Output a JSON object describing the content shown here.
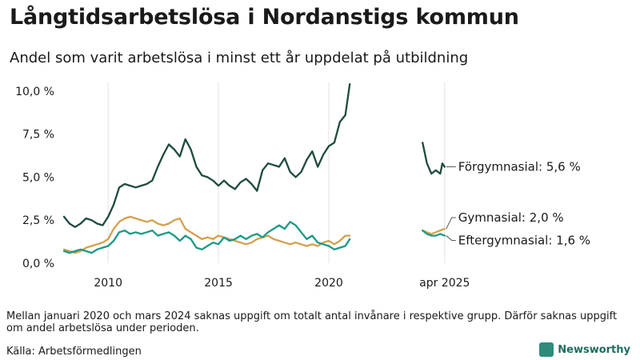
{
  "title": "Långtidsarbetslösa i Nordanstigs kommun",
  "subtitle": "Andel som varit arbetslösa i minst ett år uppdelat på utbildning",
  "note": "Mellan januari 2020 och mars 2024 saknas uppgift om totalt antal invånare i respektive grupp. Därför saknas uppgift om andel arbetslösa under perioden.",
  "source": "Källa: Arbetsförmedlingen",
  "brand": "Newsworthy",
  "chart_data": {
    "type": "line",
    "title": "Långtidsarbetslösa i Nordanstigs kommun",
    "subtitle": "Andel som varit arbetslösa i minst ett år uppdelat på utbildning",
    "xlabel": "",
    "ylabel": "",
    "y_ticks": [
      "0,0 %",
      "2,5 %",
      "5,0 %",
      "7,5 %",
      "10,0 %"
    ],
    "y_tick_values": [
      0,
      2.5,
      5,
      7.5,
      10
    ],
    "x_ticks": [
      "2010",
      "2015",
      "2020",
      "apr 2025"
    ],
    "x_tick_values": [
      2010.0,
      2015.0,
      2020.0,
      2025.25
    ],
    "xlim": [
      2008.0,
      2026.2
    ],
    "ylim": [
      0,
      10.5
    ],
    "grid": "vertical",
    "legend": "labels at line ends (right)",
    "colors": {
      "forgymnasial": "#1e4a40",
      "gymnasial": "#d4a04c",
      "eftergymnasial": "#1b9a86"
    },
    "series": [
      {
        "name": "Förgymnasial",
        "key": "forgymnasial",
        "end_label": "Förgymnasial: 5,6 %",
        "segments": [
          [
            [
              2008.0,
              2.7
            ],
            [
              2008.25,
              2.3
            ],
            [
              2008.5,
              2.1
            ],
            [
              2008.75,
              2.3
            ],
            [
              2009.0,
              2.6
            ],
            [
              2009.25,
              2.5
            ],
            [
              2009.5,
              2.3
            ],
            [
              2009.75,
              2.2
            ],
            [
              2010.0,
              2.7
            ],
            [
              2010.25,
              3.4
            ],
            [
              2010.5,
              4.4
            ],
            [
              2010.75,
              4.6
            ],
            [
              2011.0,
              4.5
            ],
            [
              2011.25,
              4.4
            ],
            [
              2011.5,
              4.5
            ],
            [
              2011.75,
              4.6
            ],
            [
              2012.0,
              4.8
            ],
            [
              2012.25,
              5.6
            ],
            [
              2012.5,
              6.3
            ],
            [
              2012.75,
              6.9
            ],
            [
              2013.0,
              6.6
            ],
            [
              2013.25,
              6.2
            ],
            [
              2013.5,
              7.2
            ],
            [
              2013.75,
              6.6
            ],
            [
              2014.0,
              5.6
            ],
            [
              2014.25,
              5.1
            ],
            [
              2014.5,
              5.0
            ],
            [
              2014.75,
              4.8
            ],
            [
              2015.0,
              4.5
            ],
            [
              2015.25,
              4.8
            ],
            [
              2015.5,
              4.5
            ],
            [
              2015.75,
              4.3
            ],
            [
              2016.0,
              4.7
            ],
            [
              2016.25,
              4.9
            ],
            [
              2016.5,
              4.6
            ],
            [
              2016.75,
              4.2
            ],
            [
              2017.0,
              5.4
            ],
            [
              2017.25,
              5.8
            ],
            [
              2017.5,
              5.7
            ],
            [
              2017.75,
              5.6
            ],
            [
              2018.0,
              6.1
            ],
            [
              2018.25,
              5.3
            ],
            [
              2018.5,
              5.0
            ],
            [
              2018.75,
              5.3
            ],
            [
              2019.0,
              6.0
            ],
            [
              2019.25,
              6.5
            ],
            [
              2019.5,
              5.6
            ],
            [
              2019.75,
              6.3
            ],
            [
              2020.0,
              6.8
            ],
            [
              2020.25,
              7.0
            ],
            [
              2020.5,
              8.2
            ],
            [
              2020.75,
              8.6
            ],
            [
              2020.95,
              10.4
            ]
          ],
          [
            [
              2024.25,
              7.0
            ],
            [
              2024.45,
              5.8
            ],
            [
              2024.65,
              5.2
            ],
            [
              2024.85,
              5.4
            ],
            [
              2025.05,
              5.2
            ],
            [
              2025.15,
              5.8
            ],
            [
              2025.25,
              5.6
            ]
          ]
        ]
      },
      {
        "name": "Gymnasial",
        "key": "gymnasial",
        "end_label": "Gymnasial: 2,0 %",
        "segments": [
          [
            [
              2008.0,
              0.8
            ],
            [
              2008.25,
              0.7
            ],
            [
              2008.5,
              0.6
            ],
            [
              2008.75,
              0.7
            ],
            [
              2009.0,
              0.9
            ],
            [
              2009.25,
              1.0
            ],
            [
              2009.5,
              1.1
            ],
            [
              2009.75,
              1.2
            ],
            [
              2010.0,
              1.4
            ],
            [
              2010.25,
              2.0
            ],
            [
              2010.5,
              2.4
            ],
            [
              2010.75,
              2.6
            ],
            [
              2011.0,
              2.7
            ],
            [
              2011.25,
              2.6
            ],
            [
              2011.5,
              2.5
            ],
            [
              2011.75,
              2.4
            ],
            [
              2012.0,
              2.5
            ],
            [
              2012.25,
              2.3
            ],
            [
              2012.5,
              2.2
            ],
            [
              2012.75,
              2.3
            ],
            [
              2013.0,
              2.5
            ],
            [
              2013.25,
              2.6
            ],
            [
              2013.5,
              2.0
            ],
            [
              2013.75,
              1.8
            ],
            [
              2014.0,
              1.6
            ],
            [
              2014.25,
              1.4
            ],
            [
              2014.5,
              1.5
            ],
            [
              2014.75,
              1.4
            ],
            [
              2015.0,
              1.6
            ],
            [
              2015.25,
              1.5
            ],
            [
              2015.5,
              1.4
            ],
            [
              2015.75,
              1.3
            ],
            [
              2016.0,
              1.2
            ],
            [
              2016.25,
              1.1
            ],
            [
              2016.5,
              1.2
            ],
            [
              2016.75,
              1.4
            ],
            [
              2017.0,
              1.5
            ],
            [
              2017.25,
              1.6
            ],
            [
              2017.5,
              1.4
            ],
            [
              2017.75,
              1.3
            ],
            [
              2018.0,
              1.2
            ],
            [
              2018.25,
              1.1
            ],
            [
              2018.5,
              1.2
            ],
            [
              2018.75,
              1.1
            ],
            [
              2019.0,
              1.0
            ],
            [
              2019.25,
              1.1
            ],
            [
              2019.5,
              1.0
            ],
            [
              2019.75,
              1.2
            ],
            [
              2020.0,
              1.3
            ],
            [
              2020.25,
              1.1
            ],
            [
              2020.5,
              1.3
            ],
            [
              2020.75,
              1.6
            ],
            [
              2020.95,
              1.6
            ]
          ],
          [
            [
              2024.25,
              1.9
            ],
            [
              2024.45,
              1.8
            ],
            [
              2024.65,
              1.7
            ],
            [
              2024.85,
              1.8
            ],
            [
              2025.05,
              1.9
            ],
            [
              2025.25,
              2.0
            ]
          ]
        ]
      },
      {
        "name": "Eftergymnasial",
        "key": "eftergymnasial",
        "end_label": "Eftergymnasial: 1,6 %",
        "segments": [
          [
            [
              2008.0,
              0.7
            ],
            [
              2008.25,
              0.6
            ],
            [
              2008.5,
              0.7
            ],
            [
              2008.75,
              0.8
            ],
            [
              2009.0,
              0.7
            ],
            [
              2009.25,
              0.6
            ],
            [
              2009.5,
              0.8
            ],
            [
              2009.75,
              0.9
            ],
            [
              2010.0,
              1.0
            ],
            [
              2010.25,
              1.3
            ],
            [
              2010.5,
              1.8
            ],
            [
              2010.75,
              1.9
            ],
            [
              2011.0,
              1.7
            ],
            [
              2011.25,
              1.8
            ],
            [
              2011.5,
              1.7
            ],
            [
              2011.75,
              1.8
            ],
            [
              2012.0,
              1.9
            ],
            [
              2012.25,
              1.6
            ],
            [
              2012.5,
              1.7
            ],
            [
              2012.75,
              1.8
            ],
            [
              2013.0,
              1.6
            ],
            [
              2013.25,
              1.3
            ],
            [
              2013.5,
              1.6
            ],
            [
              2013.75,
              1.4
            ],
            [
              2014.0,
              0.9
            ],
            [
              2014.25,
              0.8
            ],
            [
              2014.5,
              1.0
            ],
            [
              2014.75,
              1.2
            ],
            [
              2015.0,
              1.1
            ],
            [
              2015.25,
              1.5
            ],
            [
              2015.5,
              1.3
            ],
            [
              2015.75,
              1.4
            ],
            [
              2016.0,
              1.6
            ],
            [
              2016.25,
              1.4
            ],
            [
              2016.5,
              1.6
            ],
            [
              2016.75,
              1.7
            ],
            [
              2017.0,
              1.5
            ],
            [
              2017.25,
              1.8
            ],
            [
              2017.5,
              2.0
            ],
            [
              2017.75,
              2.2
            ],
            [
              2018.0,
              2.0
            ],
            [
              2018.25,
              2.4
            ],
            [
              2018.5,
              2.2
            ],
            [
              2018.75,
              1.8
            ],
            [
              2019.0,
              1.4
            ],
            [
              2019.25,
              1.6
            ],
            [
              2019.5,
              1.2
            ],
            [
              2019.75,
              1.1
            ],
            [
              2020.0,
              1.0
            ],
            [
              2020.25,
              0.8
            ],
            [
              2020.5,
              0.9
            ],
            [
              2020.75,
              1.0
            ],
            [
              2020.95,
              1.4
            ]
          ],
          [
            [
              2024.25,
              1.9
            ],
            [
              2024.45,
              1.7
            ],
            [
              2024.65,
              1.6
            ],
            [
              2024.85,
              1.6
            ],
            [
              2025.05,
              1.7
            ],
            [
              2025.25,
              1.6
            ]
          ]
        ]
      }
    ]
  }
}
